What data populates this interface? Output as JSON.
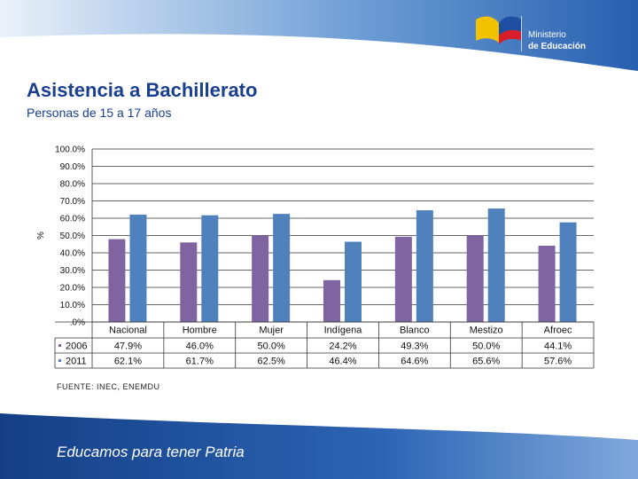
{
  "header": {
    "ministry_line1": "Ministerio",
    "ministry_line2": "de Educación",
    "brand_colors": [
      "#f2c200",
      "#1f4fa3",
      "#d81e2c"
    ]
  },
  "title": "Asistencia a Bachillerato",
  "subtitle": "Personas de 15 a 17 años",
  "source": "FUENTE: INEC, ENEMDU",
  "footer": {
    "slogan": "Educamos para tener Patria"
  },
  "chart_data": {
    "type": "bar",
    "ylabel": "%",
    "ylim": [
      0,
      100
    ],
    "yticks": [
      "100.0%",
      "90.0%",
      "80.0%",
      "70.0%",
      "60.0%",
      "50.0%",
      "40.0%",
      "30.0%",
      "20.0%",
      "10.0%",
      ".0%"
    ],
    "grid": true,
    "categories": [
      "Nacional",
      "Hombre",
      "Mujer",
      "Indígena",
      "Blanco",
      "Mestizo",
      "Afroec"
    ],
    "series": [
      {
        "name": "2006",
        "color": "#8064a2",
        "values": [
          47.9,
          46.0,
          50.0,
          24.2,
          49.3,
          50.0,
          44.1
        ],
        "labels": [
          "47.9%",
          "46.0%",
          "50.0%",
          "24.2%",
          "49.3%",
          "50.0%",
          "44.1%"
        ]
      },
      {
        "name": "2011",
        "color": "#4f81bd",
        "values": [
          62.1,
          61.7,
          62.5,
          46.4,
          64.6,
          65.6,
          57.6
        ],
        "labels": [
          "62.1%",
          "61.7%",
          "62.5%",
          "46.4%",
          "64.6%",
          "65.6%",
          "57.6%"
        ]
      }
    ]
  }
}
